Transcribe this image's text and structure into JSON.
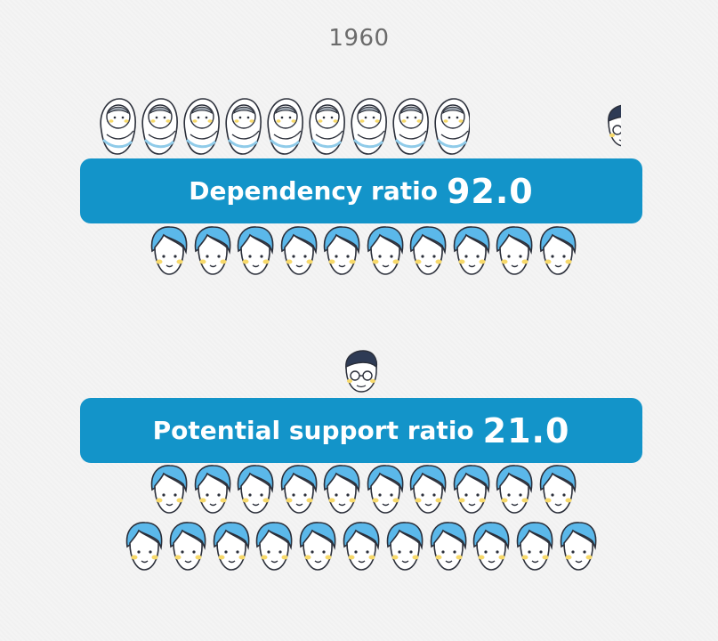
{
  "year": "1960",
  "dependency": {
    "label": "Dependency ratio",
    "value": "92.0",
    "children_icon": "baby-icon",
    "children_count": 9,
    "adult_icon": "adult-icon",
    "adult_count": 10
  },
  "support": {
    "label": "Potential support ratio",
    "value": "21.0",
    "elder_icon": "elder-icon",
    "adult_icon": "adult-icon",
    "adult_count": 21
  },
  "colors": {
    "banner": "#1394c9",
    "hair": "#5bb8ea",
    "cheek": "#f7d96a",
    "outline": "#2b2f3a"
  }
}
